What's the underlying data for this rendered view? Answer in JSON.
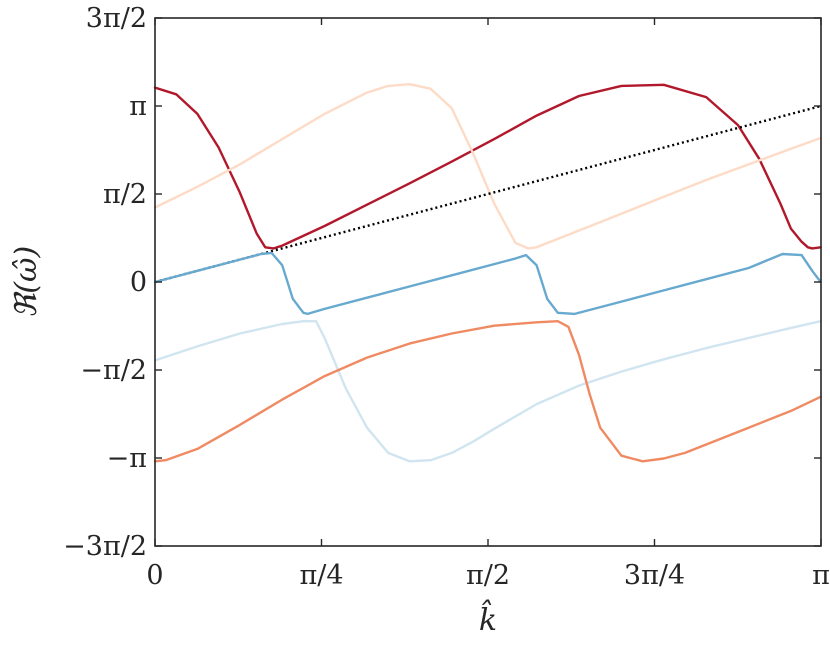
{
  "chart_data": {
    "type": "line",
    "xlabel": "k̂",
    "ylabel": "ℜ(ω̂)",
    "xlim": [
      0,
      3.14159265
    ],
    "ylim": [
      -4.71238898,
      4.71238898
    ],
    "grid": false,
    "xticks": [
      {
        "value": 0,
        "label": "0"
      },
      {
        "value": 0.78539816,
        "label": "π/4"
      },
      {
        "value": 1.57079633,
        "label": "π/2"
      },
      {
        "value": 2.35619449,
        "label": "3π/4"
      },
      {
        "value": 3.14159265,
        "label": "π"
      }
    ],
    "yticks": [
      {
        "value": -4.71238898,
        "label": "−3π/2"
      },
      {
        "value": -3.14159265,
        "label": "−π"
      },
      {
        "value": -1.57079633,
        "label": "−π/2"
      },
      {
        "value": 0,
        "label": "0"
      },
      {
        "value": 1.57079633,
        "label": "π/2"
      },
      {
        "value": 3.14159265,
        "label": "π"
      },
      {
        "value": 4.71238898,
        "label": "3π/2"
      }
    ],
    "series": [
      {
        "color": "#b2182b",
        "style": "solid",
        "x": [
          0,
          0.1,
          0.2,
          0.3,
          0.4,
          0.48,
          0.52,
          0.56,
          0.6,
          0.8,
          1.0,
          1.2,
          1.4,
          1.6,
          1.8,
          2.0,
          2.2,
          2.4,
          2.6,
          2.75,
          2.85,
          2.95,
          3.0,
          3.05,
          3.08,
          3.1,
          3.14
        ],
        "y": [
          3.47,
          3.35,
          3.0,
          2.4,
          1.6,
          0.86,
          0.62,
          0.6,
          0.65,
          1.0,
          1.38,
          1.76,
          2.15,
          2.55,
          2.97,
          3.32,
          3.5,
          3.52,
          3.3,
          2.8,
          2.2,
          1.4,
          0.95,
          0.72,
          0.62,
          0.6,
          0.62
        ]
      },
      {
        "color": "#fddbc7",
        "style": "solid",
        "x": [
          0,
          0.2,
          0.4,
          0.6,
          0.8,
          1.0,
          1.1,
          1.2,
          1.3,
          1.4,
          1.5,
          1.6,
          1.7,
          1.76,
          1.8,
          2.0,
          2.2,
          2.4,
          2.6,
          2.8,
          3.0,
          3.14
        ],
        "y": [
          1.33,
          1.7,
          2.1,
          2.55,
          3.0,
          3.38,
          3.5,
          3.53,
          3.45,
          3.1,
          2.3,
          1.4,
          0.7,
          0.6,
          0.62,
          0.92,
          1.22,
          1.52,
          1.82,
          2.1,
          2.38,
          2.57
        ]
      },
      {
        "color": "#000000",
        "style": "dotted",
        "x": [
          0,
          3.14159265
        ],
        "y": [
          0,
          3.14159265
        ]
      },
      {
        "color": "#67a9cf",
        "style": "solid",
        "x": [
          0,
          0.2,
          0.4,
          0.5,
          0.55,
          0.6,
          0.65,
          0.7,
          0.72,
          0.8,
          1.0,
          1.2,
          1.4,
          1.6,
          1.7,
          1.75,
          1.8,
          1.85,
          1.9,
          1.98,
          2.2,
          2.4,
          2.6,
          2.8,
          2.96,
          3.05,
          3.1,
          3.14
        ],
        "y": [
          0,
          0.2,
          0.4,
          0.5,
          0.52,
          0.3,
          -0.3,
          -0.55,
          -0.57,
          -0.48,
          -0.28,
          -0.08,
          0.12,
          0.32,
          0.42,
          0.48,
          0.3,
          -0.3,
          -0.55,
          -0.57,
          -0.35,
          -0.15,
          0.05,
          0.25,
          0.5,
          0.48,
          0.2,
          0.0
        ]
      },
      {
        "color": "#d1e5f0",
        "style": "solid",
        "x": [
          0,
          0.2,
          0.4,
          0.6,
          0.7,
          0.76,
          0.8,
          0.9,
          1.0,
          1.1,
          1.2,
          1.3,
          1.4,
          1.5,
          1.6,
          1.8,
          2.0,
          2.2,
          2.4,
          2.6,
          2.8,
          3.0,
          3.14
        ],
        "y": [
          -1.4,
          -1.15,
          -0.92,
          -0.75,
          -0.7,
          -0.7,
          -1.0,
          -1.9,
          -2.6,
          -3.05,
          -3.2,
          -3.18,
          -3.05,
          -2.85,
          -2.62,
          -2.18,
          -1.85,
          -1.6,
          -1.38,
          -1.18,
          -1.0,
          -0.82,
          -0.7
        ]
      },
      {
        "color": "#ef8a62",
        "style": "solid",
        "x": [
          0,
          0.05,
          0.2,
          0.4,
          0.6,
          0.8,
          1.0,
          1.2,
          1.4,
          1.6,
          1.8,
          1.9,
          1.95,
          2.0,
          2.05,
          2.1,
          2.2,
          2.3,
          2.4,
          2.5,
          2.6,
          2.7,
          2.8,
          3.0,
          3.14
        ],
        "y": [
          -3.2,
          -3.18,
          -2.98,
          -2.55,
          -2.1,
          -1.68,
          -1.35,
          -1.1,
          -0.92,
          -0.78,
          -0.72,
          -0.7,
          -0.8,
          -1.3,
          -2.0,
          -2.6,
          -3.1,
          -3.2,
          -3.15,
          -3.05,
          -2.9,
          -2.75,
          -2.6,
          -2.3,
          -2.05
        ]
      }
    ]
  }
}
